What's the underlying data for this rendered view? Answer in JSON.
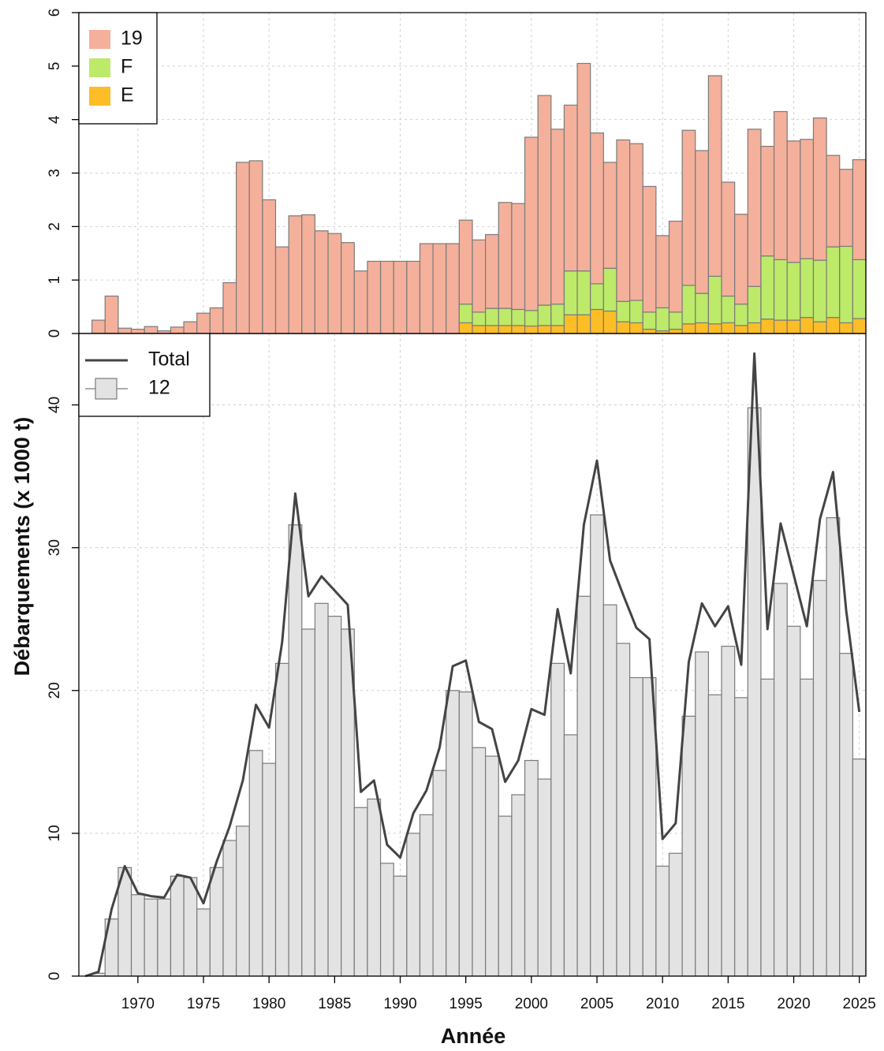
{
  "chart_data": [
    {
      "type": "bar",
      "stacked": true,
      "legend": "top-left",
      "grid": true,
      "x": [
        1966,
        1967,
        1968,
        1969,
        1970,
        1971,
        1972,
        1973,
        1974,
        1975,
        1976,
        1977,
        1978,
        1979,
        1980,
        1981,
        1982,
        1983,
        1984,
        1985,
        1986,
        1987,
        1988,
        1989,
        1990,
        1991,
        1992,
        1993,
        1994,
        1995,
        1996,
        1997,
        1998,
        1999,
        2000,
        2001,
        2002,
        2003,
        2004,
        2005,
        2006,
        2007,
        2008,
        2009,
        2010,
        2011,
        2012,
        2013,
        2014,
        2015,
        2016,
        2017,
        2018,
        2019,
        2020,
        2021,
        2022,
        2023,
        2024,
        2025
      ],
      "xlim": [
        1965.5,
        2025.5
      ],
      "ylim": [
        0,
        6
      ],
      "yticks": [
        0,
        1,
        2,
        3,
        4,
        5,
        6
      ],
      "series": [
        {
          "name": "19",
          "color": "#f4b09b",
          "values": [
            0,
            0.25,
            0.7,
            0.1,
            0.08,
            0.13,
            0.05,
            0.12,
            0.22,
            0.38,
            0.48,
            0.95,
            3.2,
            3.23,
            2.5,
            1.62,
            2.2,
            2.22,
            1.92,
            1.87,
            1.7,
            1.17,
            1.35,
            1.35,
            1.35,
            1.35,
            1.68,
            1.68,
            1.68,
            1.57,
            1.35,
            1.38,
            1.98,
            1.98,
            3.24,
            3.92,
            3.27,
            3.1,
            3.88,
            2.82,
            1.98,
            3.02,
            2.93,
            2.35,
            1.35,
            1.7,
            2.9,
            2.67,
            3.75,
            2.13,
            1.68,
            2.94,
            2.05,
            2.77,
            2.27,
            2.23,
            2.66,
            1.71,
            1.44,
            1.87
          ]
        },
        {
          "name": "F",
          "color": "#bdea68",
          "values": [
            0,
            0,
            0,
            0,
            0,
            0,
            0,
            0,
            0,
            0,
            0,
            0,
            0,
            0,
            0,
            0,
            0,
            0,
            0,
            0,
            0,
            0,
            0,
            0,
            0,
            0,
            0,
            0,
            0,
            0.35,
            0.25,
            0.32,
            0.32,
            0.3,
            0.29,
            0.38,
            0.4,
            0.82,
            0.82,
            0.48,
            0.8,
            0.38,
            0.42,
            0.32,
            0.43,
            0.32,
            0.72,
            0.55,
            0.89,
            0.5,
            0.4,
            0.68,
            1.18,
            1.13,
            1.08,
            1.1,
            1.15,
            1.32,
            1.43,
            1.1
          ]
        },
        {
          "name": "E",
          "color": "#fdbd27",
          "values": [
            0,
            0,
            0,
            0,
            0,
            0,
            0,
            0,
            0,
            0,
            0,
            0,
            0,
            0,
            0,
            0,
            0,
            0,
            0,
            0,
            0,
            0,
            0,
            0,
            0,
            0,
            0,
            0,
            0,
            0.2,
            0.15,
            0.15,
            0.15,
            0.15,
            0.14,
            0.15,
            0.15,
            0.35,
            0.35,
            0.45,
            0.42,
            0.22,
            0.2,
            0.08,
            0.05,
            0.08,
            0.18,
            0.2,
            0.18,
            0.2,
            0.15,
            0.2,
            0.27,
            0.25,
            0.25,
            0.3,
            0.22,
            0.3,
            0.2,
            0.28
          ]
        }
      ]
    },
    {
      "type": "combo",
      "legend": "top-left",
      "grid": true,
      "xlabel": "Année",
      "ylabel": "Débarquements (x 1000 t)",
      "x": [
        1966,
        1967,
        1968,
        1969,
        1970,
        1971,
        1972,
        1973,
        1974,
        1975,
        1976,
        1977,
        1978,
        1979,
        1980,
        1981,
        1982,
        1983,
        1984,
        1985,
        1986,
        1987,
        1988,
        1989,
        1990,
        1991,
        1992,
        1993,
        1994,
        1995,
        1996,
        1997,
        1998,
        1999,
        2000,
        2001,
        2002,
        2003,
        2004,
        2005,
        2006,
        2007,
        2008,
        2009,
        2010,
        2011,
        2012,
        2013,
        2014,
        2015,
        2016,
        2017,
        2018,
        2019,
        2020,
        2021,
        2022,
        2023,
        2024,
        2025
      ],
      "xlim": [
        1965.5,
        2025.5
      ],
      "xticks": [
        1970,
        1975,
        1980,
        1985,
        1990,
        1995,
        2000,
        2005,
        2010,
        2015,
        2020,
        2025
      ],
      "ylim": [
        0,
        45
      ],
      "yticks": [
        0,
        10,
        20,
        30,
        40
      ],
      "series": [
        {
          "name": "Total",
          "type": "line",
          "color": "#444444",
          "values": [
            0,
            0.3,
            4.7,
            7.7,
            5.8,
            5.6,
            5.5,
            7.1,
            6.9,
            5.1,
            8.0,
            10.5,
            13.7,
            19.0,
            17.4,
            23.4,
            33.8,
            26.6,
            28.0,
            27.0,
            26.0,
            12.9,
            13.7,
            9.2,
            8.3,
            11.4,
            13.0,
            16.0,
            21.7,
            22.1,
            17.8,
            17.3,
            13.6,
            15.1,
            18.7,
            18.3,
            25.7,
            21.2,
            31.6,
            36.1,
            29.1,
            26.7,
            24.4,
            23.6,
            9.6,
            10.7,
            22.0,
            26.1,
            24.5,
            25.9,
            21.8,
            43.6,
            24.3,
            31.7,
            28.1,
            24.5,
            32.0,
            35.3,
            25.6,
            18.5
          ]
        },
        {
          "name": "12",
          "type": "bar",
          "color": "#e3e3e3",
          "values": [
            0,
            0.2,
            4.0,
            7.6,
            5.7,
            5.4,
            5.4,
            7.0,
            6.9,
            4.7,
            7.6,
            9.5,
            10.5,
            15.8,
            14.9,
            21.9,
            31.6,
            24.3,
            26.1,
            25.2,
            24.3,
            11.8,
            12.4,
            7.9,
            7.0,
            10.0,
            11.3,
            14.4,
            20.0,
            19.9,
            16.0,
            15.4,
            11.2,
            12.7,
            15.1,
            13.8,
            21.9,
            16.9,
            26.6,
            32.3,
            26.0,
            23.3,
            20.9,
            20.9,
            7.7,
            8.6,
            18.2,
            22.7,
            19.7,
            23.1,
            19.5,
            39.8,
            20.8,
            27.5,
            24.5,
            20.8,
            27.7,
            32.1,
            22.6,
            15.2
          ]
        }
      ]
    }
  ]
}
